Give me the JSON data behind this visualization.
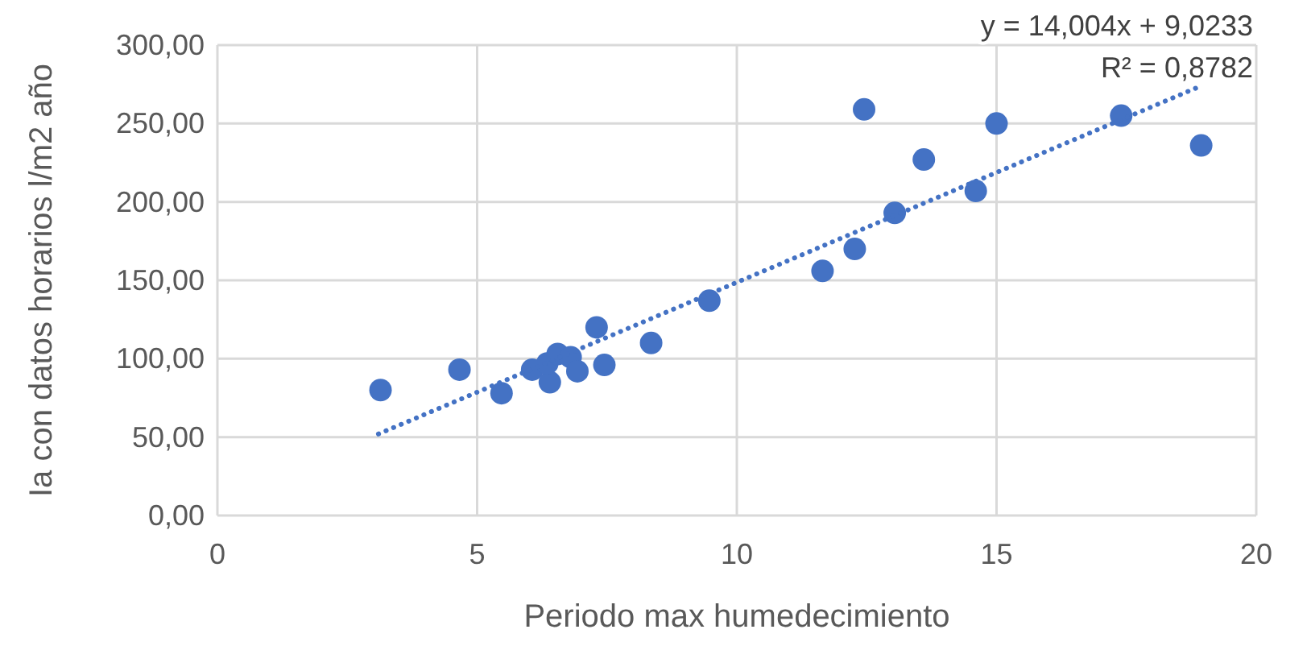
{
  "chart_data": {
    "type": "scatter",
    "xlabel": "Periodo max humedecimiento",
    "ylabel": "Ia con datos horarios l/m2 año",
    "xlim": [
      0,
      20
    ],
    "xticks": [
      0,
      5,
      10,
      15,
      20
    ],
    "ylim": [
      0,
      300
    ],
    "yticks": [
      {
        "value": 0,
        "label": "0,00"
      },
      {
        "value": 50,
        "label": "50,00"
      },
      {
        "value": 100,
        "label": "100,00"
      },
      {
        "value": 150,
        "label": "150,00"
      },
      {
        "value": 200,
        "label": "200,00"
      },
      {
        "value": 250,
        "label": "250,00"
      },
      {
        "value": 300,
        "label": "300,00"
      }
    ],
    "grid": true,
    "series": [
      {
        "color": "#4472c4",
        "marker": "circle",
        "x": [
          3.14,
          4.66,
          5.47,
          6.06,
          6.4,
          6.35,
          6.55,
          6.8,
          6.93,
          7.3,
          7.45,
          8.35,
          9.47,
          11.65,
          12.27,
          12.45,
          13.04,
          13.6,
          14.6,
          15.0,
          17.4,
          18.94
        ],
        "values": [
          80,
          93,
          78,
          93,
          85,
          97,
          103,
          101,
          92,
          120,
          96,
          110,
          137,
          156,
          170,
          259,
          193,
          227,
          207,
          250,
          255,
          236
        ]
      },
      {
        "type": "line",
        "color": "#4472c4",
        "line_style": "dotted",
        "marker": "none",
        "x": [
          3.1,
          18.94
        ],
        "values": [
          52,
          274
        ]
      }
    ],
    "annotations": [
      "y = 14,004x + 9,0233",
      "R² = 0,8782"
    ]
  }
}
